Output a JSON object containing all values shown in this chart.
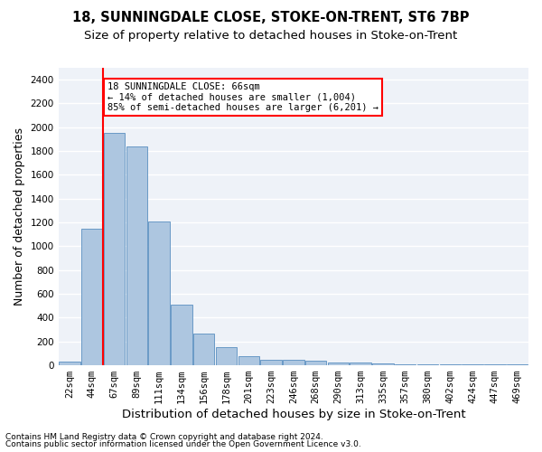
{
  "title1": "18, SUNNINGDALE CLOSE, STOKE-ON-TRENT, ST6 7BP",
  "title2": "Size of property relative to detached houses in Stoke-on-Trent",
  "xlabel": "Distribution of detached houses by size in Stoke-on-Trent",
  "ylabel": "Number of detached properties",
  "footnote1": "Contains HM Land Registry data © Crown copyright and database right 2024.",
  "footnote2": "Contains public sector information licensed under the Open Government Licence v3.0.",
  "annotation_line1": "18 SUNNINGDALE CLOSE: 66sqm",
  "annotation_line2": "← 14% of detached houses are smaller (1,004)",
  "annotation_line3": "85% of semi-detached houses are larger (6,201) →",
  "categories": [
    "22sqm",
    "44sqm",
    "67sqm",
    "89sqm",
    "111sqm",
    "134sqm",
    "156sqm",
    "178sqm",
    "201sqm",
    "223sqm",
    "246sqm",
    "268sqm",
    "290sqm",
    "313sqm",
    "335sqm",
    "357sqm",
    "380sqm",
    "402sqm",
    "424sqm",
    "447sqm",
    "469sqm"
  ],
  "values": [
    30,
    1150,
    1950,
    1840,
    1210,
    510,
    265,
    155,
    80,
    50,
    45,
    40,
    25,
    20,
    15,
    5,
    5,
    5,
    5,
    5,
    5
  ],
  "bar_color": "#adc6e0",
  "bar_edge_color": "#5a8fc0",
  "vline_color": "red",
  "ylim": [
    0,
    2500
  ],
  "yticks": [
    0,
    200,
    400,
    600,
    800,
    1000,
    1200,
    1400,
    1600,
    1800,
    2000,
    2200,
    2400
  ],
  "annotation_box_color": "red",
  "bg_color": "#eef2f8",
  "grid_color": "white",
  "title1_fontsize": 10.5,
  "title2_fontsize": 9.5,
  "axis_label_fontsize": 9,
  "tick_fontsize": 7.5,
  "annotation_fontsize": 7.5,
  "footnote_fontsize": 6.5
}
